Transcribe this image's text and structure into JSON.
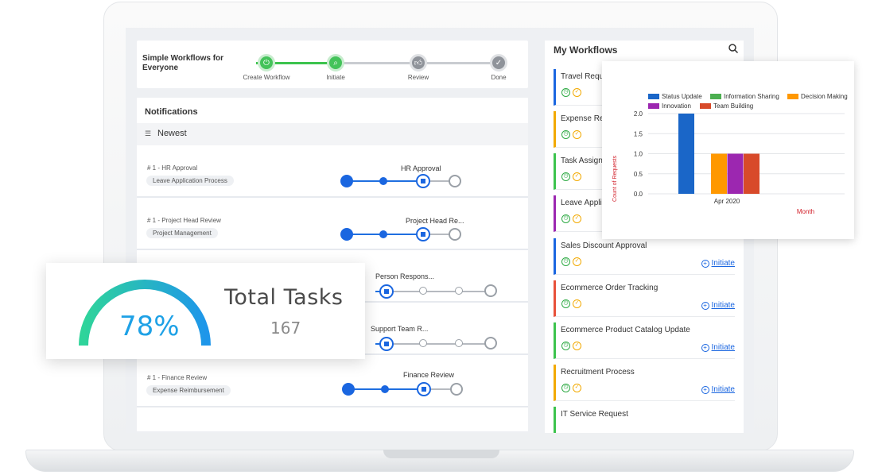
{
  "steps": {
    "title": "Simple Workflows for Everyone",
    "items": [
      {
        "label": "Create Workflow",
        "icon": "power-icon",
        "state": "done"
      },
      {
        "label": "Initiate",
        "icon": "search-icon",
        "state": "done"
      },
      {
        "label": "Review",
        "icon": "thumbs-up-icon",
        "state": "pending"
      },
      {
        "label": "Done",
        "icon": "check-icon",
        "state": "pending"
      }
    ]
  },
  "notifications": {
    "title": "Notifications",
    "filter_label": "Newest",
    "rows": [
      {
        "number": "# 1 - HR Approval",
        "tag": "Leave Application Process",
        "stage": "HR Approval"
      },
      {
        "number": "# 1 - Project Head Review",
        "tag": "Project Management",
        "stage": "Project Head Re..."
      },
      {
        "number": "",
        "tag": "",
        "stage": "Person Respons..."
      },
      {
        "number": "",
        "tag": "",
        "stage": "Support Team R..."
      },
      {
        "number": "# 1 - Finance Review",
        "tag": "Expense Reimbursement",
        "stage": "Finance Review"
      }
    ]
  },
  "workflows": {
    "title": "My Workflows",
    "initiate_label": "Initiate",
    "items": [
      {
        "name": "Travel Requ",
        "color": "#1a66e0"
      },
      {
        "name": "Expense Re",
        "color": "#f2a900"
      },
      {
        "name": "Task Assign",
        "color": "#3cc34d"
      },
      {
        "name": "Leave Appli",
        "color": "#9c27b0"
      },
      {
        "name": "Sales Discount Approval",
        "color": "#1a66e0"
      },
      {
        "name": "Ecommerce Order Tracking",
        "color": "#e8513a"
      },
      {
        "name": "Ecommerce Product Catalog Update",
        "color": "#3cc34d"
      },
      {
        "name": "Recruitment Process",
        "color": "#f2a900"
      },
      {
        "name": "IT Service Request",
        "color": "#3cc34d"
      }
    ]
  },
  "chart_data": {
    "type": "bar",
    "categories": [
      "Apr 2020"
    ],
    "series": [
      {
        "name": "Status Update",
        "values": [
          2
        ],
        "color": "#1a66c8"
      },
      {
        "name": "Information Sharing",
        "values": [
          0
        ],
        "color": "#4caf50"
      },
      {
        "name": "Decision Making",
        "values": [
          1
        ],
        "color": "#ff9800"
      },
      {
        "name": "Innovation",
        "values": [
          1
        ],
        "color": "#9c27b0"
      },
      {
        "name": "Team Building",
        "values": [
          1
        ],
        "color": "#d84a2a"
      }
    ],
    "xlabel": "Month",
    "ylabel": "Count of Requests",
    "yticks": [
      "0.0",
      "0.5",
      "1.0",
      "1.5",
      "2.0"
    ],
    "ylim": [
      0,
      2
    ],
    "grid": true,
    "legend": "top"
  },
  "gauge": {
    "percent_label": "78%",
    "percent": 78,
    "title": "Total Tasks",
    "value": "167"
  }
}
